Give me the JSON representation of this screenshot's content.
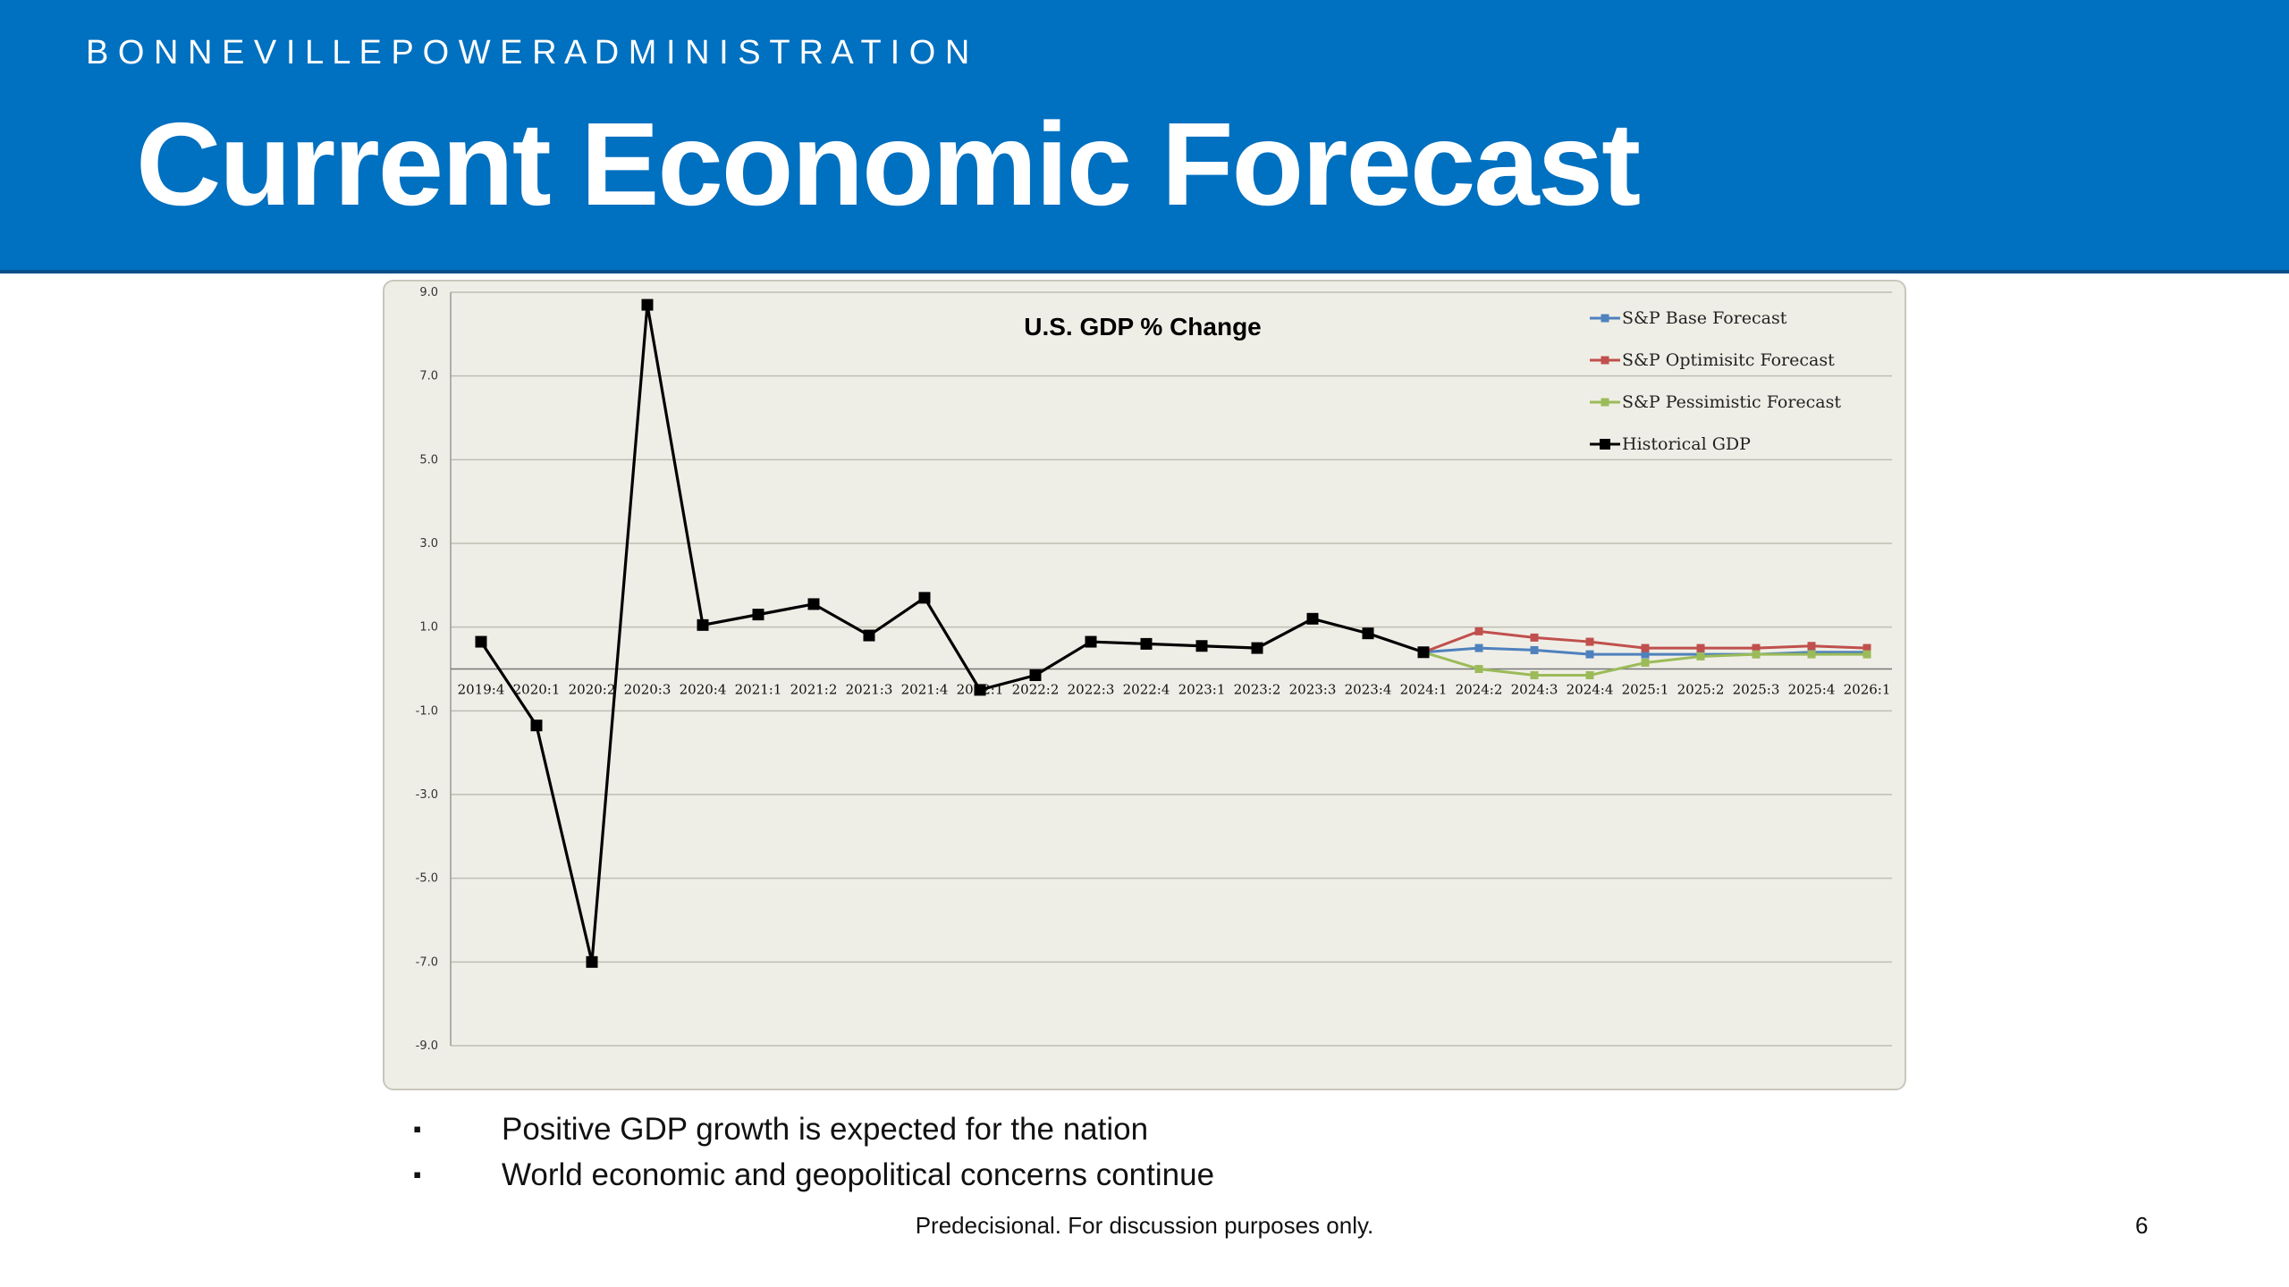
{
  "header": {
    "org": "B O N N E V I L L E   P O W E R   A D M I N I S T R A T I O N",
    "title": "Current Economic Forecast"
  },
  "colors": {
    "banner": "#0070c0",
    "base": "#4f81bd",
    "optimistic": "#c0504d",
    "pessimistic": "#9bbb59",
    "historical": "#000000"
  },
  "chart_data": {
    "type": "line",
    "title": "U.S. GDP % Change",
    "xlabel": "",
    "ylabel": "",
    "ylim": [
      -9.0,
      9.0
    ],
    "yticks": [
      "9.0",
      "7.0",
      "5.0",
      "3.0",
      "1.0",
      "-1.0",
      "-3.0",
      "-5.0",
      "-7.0",
      "-9.0"
    ],
    "grid": true,
    "legend_position": "top-right",
    "categories": [
      "2019:4",
      "2020:1",
      "2020:2",
      "2020:3",
      "2020:4",
      "2021:1",
      "2021:2",
      "2021:3",
      "2021:4",
      "2022:1",
      "2022:2",
      "2022:3",
      "2022:4",
      "2023:1",
      "2023:2",
      "2023:3",
      "2023:4",
      "2024:1",
      "2024:2",
      "2024:3",
      "2024:4",
      "2025:1",
      "2025:2",
      "2025:3",
      "2025:4",
      "2026:1"
    ],
    "series": [
      {
        "name": "S&P Base Forecast",
        "color": "#4f81bd",
        "values": [
          null,
          null,
          null,
          null,
          null,
          null,
          null,
          null,
          null,
          null,
          null,
          null,
          null,
          null,
          null,
          null,
          null,
          0.4,
          0.5,
          0.45,
          0.35,
          0.35,
          0.35,
          0.35,
          0.4,
          0.4
        ]
      },
      {
        "name": "S&P Optimisitc Forecast",
        "color": "#c0504d",
        "values": [
          null,
          null,
          null,
          null,
          null,
          null,
          null,
          null,
          null,
          null,
          null,
          null,
          null,
          null,
          null,
          null,
          null,
          0.4,
          0.9,
          0.75,
          0.65,
          0.5,
          0.5,
          0.5,
          0.55,
          0.5
        ]
      },
      {
        "name": "S&P Pessimistic Forecast",
        "color": "#9bbb59",
        "values": [
          null,
          null,
          null,
          null,
          null,
          null,
          null,
          null,
          null,
          null,
          null,
          null,
          null,
          null,
          null,
          null,
          null,
          0.4,
          0.0,
          -0.15,
          -0.15,
          0.15,
          0.3,
          0.35,
          0.35,
          0.35
        ]
      },
      {
        "name": "Historical GDP",
        "color": "#000000",
        "values": [
          0.65,
          -1.35,
          -7.0,
          8.7,
          1.05,
          1.3,
          1.55,
          0.8,
          1.7,
          -0.5,
          -0.15,
          0.65,
          0.6,
          0.55,
          0.5,
          1.2,
          0.85,
          0.4,
          null,
          null,
          null,
          null,
          null,
          null,
          null,
          null
        ]
      }
    ]
  },
  "bullets": [
    "Positive GDP growth is expected for the nation",
    "World economic and geopolitical concerns continue"
  ],
  "bullet_symbol": "▪",
  "footer": "Predecisional. For discussion purposes only.",
  "page_number": "6"
}
